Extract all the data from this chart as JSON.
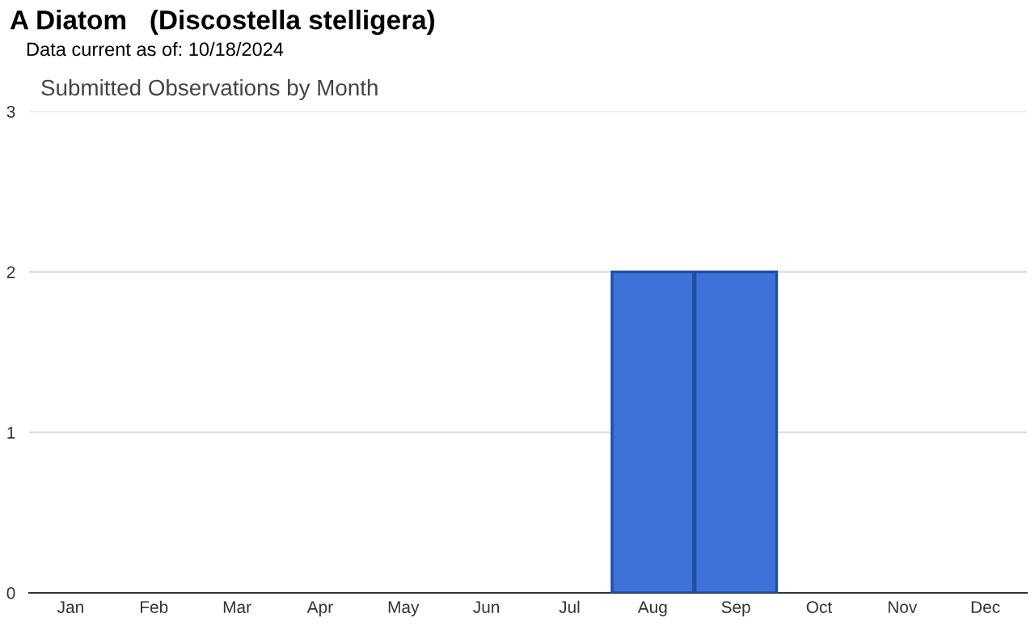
{
  "chart_data": {
    "type": "bar",
    "title": "A Diatom   (Discostella stelligera)",
    "subtitle": "Data current as of: 10/18/2024",
    "annotations": [
      "Submitted Observations by Month"
    ],
    "categories": [
      "Jan",
      "Feb",
      "Mar",
      "Apr",
      "May",
      "Jun",
      "Jul",
      "Aug",
      "Sep",
      "Oct",
      "Nov",
      "Dec"
    ],
    "values": [
      0,
      0,
      0,
      0,
      0,
      0,
      0,
      2,
      2,
      0,
      0,
      0
    ],
    "color": "#3f72d8",
    "ylim": [
      0,
      3
    ],
    "yticks": [
      0,
      1,
      2,
      3
    ],
    "grid": "y",
    "legend": false
  }
}
